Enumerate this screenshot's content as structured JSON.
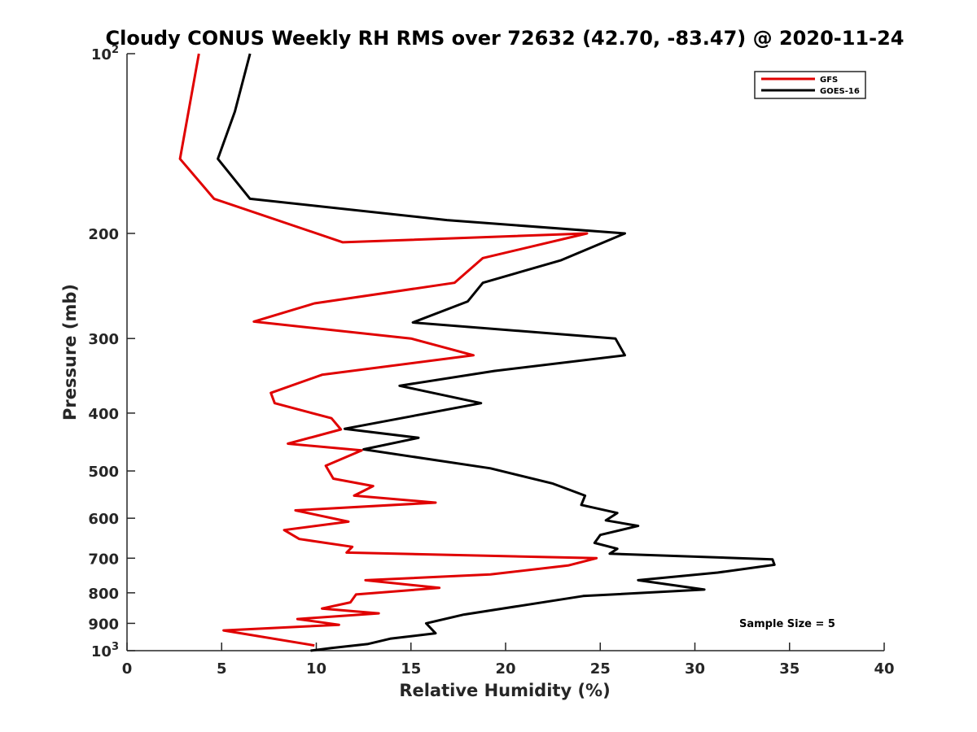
{
  "chart_data": {
    "type": "line",
    "title": "Cloudy CONUS Weekly RH RMS over 72632 (42.70, -83.47) @ 2020-11-24",
    "xlabel": "Relative Humidity (%)",
    "ylabel": "Pressure (mb)",
    "xlim": [
      0,
      40
    ],
    "ylim": [
      1000,
      100
    ],
    "y_scale": "log",
    "x_ticks": [
      "0",
      "5",
      "10",
      "15",
      "20",
      "25",
      "30",
      "35",
      "40"
    ],
    "y_ticks": [
      {
        "value": 100,
        "base": "10",
        "exp": "2"
      },
      {
        "value": 200,
        "label": "200"
      },
      {
        "value": 300,
        "label": "300"
      },
      {
        "value": 400,
        "label": "400"
      },
      {
        "value": 500,
        "label": "500"
      },
      {
        "value": 600,
        "label": "600"
      },
      {
        "value": 700,
        "label": "700"
      },
      {
        "value": 800,
        "label": "800"
      },
      {
        "value": 900,
        "label": "900"
      },
      {
        "value": 1000,
        "base": "10",
        "exp": "3"
      }
    ],
    "legend_position": "top-right",
    "annotation": "Sample Size = 5",
    "series": [
      {
        "name": "GFS",
        "color": "#e00000",
        "points": [
          [
            3.8,
            100
          ],
          [
            2.8,
            150
          ],
          [
            4.6,
            175
          ],
          [
            11.4,
            207
          ],
          [
            24.3,
            200
          ],
          [
            18.8,
            220
          ],
          [
            17.3,
            242
          ],
          [
            9.9,
            262
          ],
          [
            6.7,
            281
          ],
          [
            15.0,
            300
          ],
          [
            18.3,
            320
          ],
          [
            10.3,
            345
          ],
          [
            7.6,
            370
          ],
          [
            7.8,
            385
          ],
          [
            10.8,
            408
          ],
          [
            11.3,
            426
          ],
          [
            8.5,
            450
          ],
          [
            12.4,
            462
          ],
          [
            10.5,
            490
          ],
          [
            10.9,
            515
          ],
          [
            13.0,
            530
          ],
          [
            12.0,
            550
          ],
          [
            16.3,
            565
          ],
          [
            8.9,
            582
          ],
          [
            11.7,
            608
          ],
          [
            8.3,
            628
          ],
          [
            9.1,
            650
          ],
          [
            11.9,
            670
          ],
          [
            11.6,
            685
          ],
          [
            24.8,
            700
          ],
          [
            23.3,
            720
          ],
          [
            19.2,
            745
          ],
          [
            12.6,
            762
          ],
          [
            16.5,
            785
          ],
          [
            12.1,
            805
          ],
          [
            11.8,
            830
          ],
          [
            10.3,
            850
          ],
          [
            13.3,
            866
          ],
          [
            9.0,
            885
          ],
          [
            11.2,
            905
          ],
          [
            5.1,
            925
          ],
          [
            9.9,
            980
          ]
        ]
      },
      {
        "name": "GOES-16",
        "color": "#000000",
        "points": [
          [
            6.5,
            100
          ],
          [
            5.7,
            125
          ],
          [
            4.8,
            150
          ],
          [
            6.5,
            175
          ],
          [
            16.9,
            190
          ],
          [
            26.3,
            200
          ],
          [
            22.9,
            222
          ],
          [
            18.8,
            242
          ],
          [
            18.0,
            260
          ],
          [
            15.1,
            282
          ],
          [
            25.8,
            300
          ],
          [
            26.3,
            320
          ],
          [
            19.4,
            340
          ],
          [
            14.4,
            360
          ],
          [
            18.7,
            385
          ],
          [
            11.5,
            425
          ],
          [
            15.4,
            440
          ],
          [
            12.5,
            460
          ],
          [
            19.2,
            495
          ],
          [
            22.5,
            525
          ],
          [
            24.2,
            550
          ],
          [
            24.0,
            570
          ],
          [
            25.9,
            588
          ],
          [
            25.3,
            605
          ],
          [
            27.0,
            618
          ],
          [
            25.0,
            640
          ],
          [
            24.7,
            660
          ],
          [
            25.9,
            675
          ],
          [
            25.5,
            688
          ],
          [
            34.1,
            703
          ],
          [
            34.2,
            718
          ],
          [
            31.2,
            740
          ],
          [
            27.0,
            762
          ],
          [
            30.5,
            790
          ],
          [
            24.1,
            810
          ],
          [
            17.8,
            870
          ],
          [
            15.8,
            900
          ],
          [
            16.3,
            935
          ],
          [
            13.9,
            955
          ],
          [
            12.7,
            975
          ],
          [
            10.8,
            990
          ],
          [
            9.7,
            1000
          ]
        ]
      }
    ]
  }
}
